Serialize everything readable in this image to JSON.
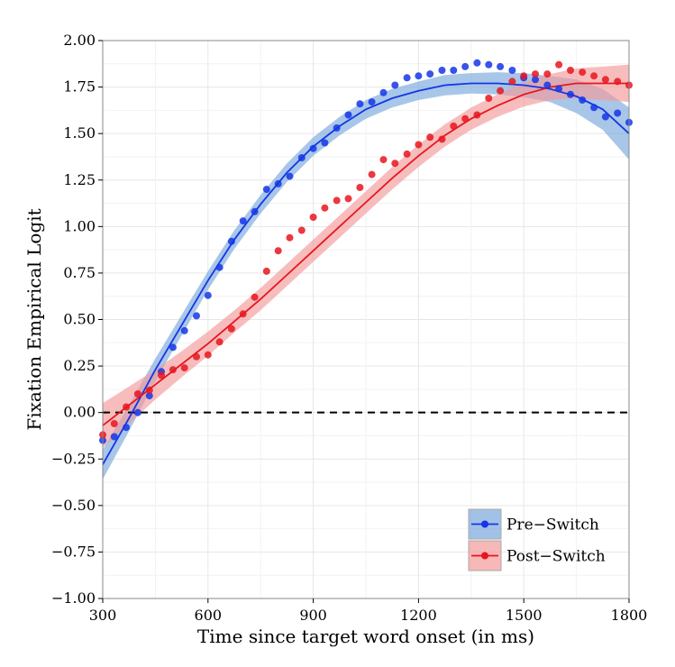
{
  "chart_data": {
    "type": "scatter",
    "xlabel": "Time since target word onset (in ms)",
    "ylabel": "Fixation Empirical Logit",
    "xlim": [
      300,
      1800
    ],
    "ylim": [
      -1.0,
      2.0
    ],
    "x_ticks": [
      "300",
      "600",
      "900",
      "1200",
      "1500",
      "1800"
    ],
    "y_ticks": [
      "-1.00",
      "-0.75",
      "-0.50",
      "-0.25",
      "0.00",
      "0.25",
      "0.50",
      "0.75",
      "1.00",
      "1.25",
      "1.50",
      "1.75",
      "2.00"
    ],
    "grid": true,
    "reference_line": {
      "y": 0,
      "style": "dashed"
    },
    "legend_position": "bottom-right",
    "series": [
      {
        "name": "Pre−Switch",
        "color": "#1535e8",
        "band_color": "#7aa7dc",
        "points": [
          [
            300,
            -0.15
          ],
          [
            333,
            -0.13
          ],
          [
            367,
            -0.08
          ],
          [
            400,
            0.0
          ],
          [
            433,
            0.09
          ],
          [
            467,
            0.22
          ],
          [
            500,
            0.35
          ],
          [
            533,
            0.44
          ],
          [
            567,
            0.52
          ],
          [
            600,
            0.63
          ],
          [
            633,
            0.78
          ],
          [
            667,
            0.92
          ],
          [
            700,
            1.03
          ],
          [
            733,
            1.08
          ],
          [
            767,
            1.2
          ],
          [
            800,
            1.23
          ],
          [
            833,
            1.27
          ],
          [
            867,
            1.37
          ],
          [
            900,
            1.42
          ],
          [
            933,
            1.45
          ],
          [
            967,
            1.53
          ],
          [
            1000,
            1.6
          ],
          [
            1033,
            1.66
          ],
          [
            1067,
            1.67
          ],
          [
            1100,
            1.72
          ],
          [
            1133,
            1.76
          ],
          [
            1167,
            1.8
          ],
          [
            1200,
            1.81
          ],
          [
            1233,
            1.82
          ],
          [
            1267,
            1.84
          ],
          [
            1300,
            1.84
          ],
          [
            1333,
            1.86
          ],
          [
            1367,
            1.88
          ],
          [
            1400,
            1.87
          ],
          [
            1433,
            1.86
          ],
          [
            1467,
            1.84
          ],
          [
            1500,
            1.8
          ],
          [
            1533,
            1.79
          ],
          [
            1567,
            1.76
          ],
          [
            1600,
            1.74
          ],
          [
            1633,
            1.71
          ],
          [
            1667,
            1.68
          ],
          [
            1700,
            1.64
          ],
          [
            1733,
            1.59
          ],
          [
            1767,
            1.61
          ],
          [
            1800,
            1.56
          ]
        ],
        "fit": [
          [
            300,
            -0.28
          ],
          [
            375,
            -0.03
          ],
          [
            450,
            0.23
          ],
          [
            525,
            0.47
          ],
          [
            600,
            0.71
          ],
          [
            675,
            0.93
          ],
          [
            750,
            1.12
          ],
          [
            825,
            1.29
          ],
          [
            900,
            1.43
          ],
          [
            975,
            1.54
          ],
          [
            1050,
            1.63
          ],
          [
            1125,
            1.69
          ],
          [
            1200,
            1.73
          ],
          [
            1275,
            1.76
          ],
          [
            1350,
            1.77
          ],
          [
            1425,
            1.77
          ],
          [
            1500,
            1.76
          ],
          [
            1575,
            1.74
          ],
          [
            1650,
            1.7
          ],
          [
            1725,
            1.63
          ],
          [
            1800,
            1.5
          ]
        ],
        "ci_halfwidth": [
          0.08,
          0.07,
          0.06,
          0.055,
          0.05,
          0.05,
          0.05,
          0.05,
          0.05,
          0.05,
          0.05,
          0.05,
          0.05,
          0.055,
          0.055,
          0.06,
          0.065,
          0.07,
          0.09,
          0.11,
          0.14
        ]
      },
      {
        "name": "Post−Switch",
        "color": "#e8151e",
        "band_color": "#f39a9a",
        "points": [
          [
            300,
            -0.12
          ],
          [
            333,
            -0.06
          ],
          [
            367,
            0.03
          ],
          [
            400,
            0.1
          ],
          [
            433,
            0.12
          ],
          [
            467,
            0.2
          ],
          [
            500,
            0.23
          ],
          [
            533,
            0.24
          ],
          [
            567,
            0.3
          ],
          [
            600,
            0.31
          ],
          [
            633,
            0.38
          ],
          [
            667,
            0.45
          ],
          [
            700,
            0.53
          ],
          [
            733,
            0.62
          ],
          [
            767,
            0.76
          ],
          [
            800,
            0.87
          ],
          [
            833,
            0.94
          ],
          [
            867,
            0.98
          ],
          [
            900,
            1.05
          ],
          [
            933,
            1.1
          ],
          [
            967,
            1.14
          ],
          [
            1000,
            1.15
          ],
          [
            1033,
            1.21
          ],
          [
            1067,
            1.28
          ],
          [
            1100,
            1.36
          ],
          [
            1133,
            1.34
          ],
          [
            1167,
            1.39
          ],
          [
            1200,
            1.44
          ],
          [
            1233,
            1.48
          ],
          [
            1267,
            1.47
          ],
          [
            1300,
            1.54
          ],
          [
            1333,
            1.58
          ],
          [
            1367,
            1.6
          ],
          [
            1400,
            1.69
          ],
          [
            1433,
            1.73
          ],
          [
            1467,
            1.78
          ],
          [
            1500,
            1.81
          ],
          [
            1533,
            1.82
          ],
          [
            1567,
            1.82
          ],
          [
            1600,
            1.87
          ],
          [
            1633,
            1.84
          ],
          [
            1667,
            1.83
          ],
          [
            1700,
            1.81
          ],
          [
            1733,
            1.79
          ],
          [
            1767,
            1.78
          ],
          [
            1800,
            1.76
          ]
        ],
        "fit": [
          [
            300,
            -0.07
          ],
          [
            375,
            0.04
          ],
          [
            450,
            0.15
          ],
          [
            525,
            0.26
          ],
          [
            600,
            0.37
          ],
          [
            675,
            0.49
          ],
          [
            750,
            0.61
          ],
          [
            825,
            0.74
          ],
          [
            900,
            0.87
          ],
          [
            975,
            1.0
          ],
          [
            1050,
            1.13
          ],
          [
            1125,
            1.26
          ],
          [
            1200,
            1.38
          ],
          [
            1275,
            1.49
          ],
          [
            1350,
            1.58
          ],
          [
            1425,
            1.65
          ],
          [
            1500,
            1.71
          ],
          [
            1575,
            1.75
          ],
          [
            1650,
            1.77
          ],
          [
            1725,
            1.77
          ],
          [
            1800,
            1.77
          ]
        ],
        "ci_halfwidth": [
          0.12,
          0.1,
          0.08,
          0.07,
          0.065,
          0.06,
          0.06,
          0.06,
          0.06,
          0.06,
          0.06,
          0.06,
          0.06,
          0.06,
          0.06,
          0.06,
          0.065,
          0.07,
          0.08,
          0.09,
          0.1
        ]
      }
    ]
  }
}
